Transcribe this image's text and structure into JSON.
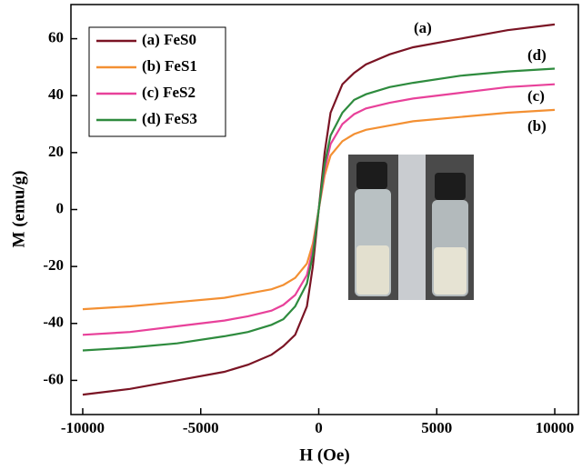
{
  "chart_data": {
    "type": "line",
    "xlabel": "H (Oe)",
    "ylabel": "M (emu/g)",
    "x": [
      -10000,
      -8000,
      -6000,
      -4000,
      -3000,
      -2000,
      -1500,
      -1000,
      -500,
      -250,
      0,
      250,
      500,
      1000,
      1500,
      2000,
      3000,
      4000,
      6000,
      8000,
      10000
    ],
    "series": [
      {
        "name": "(a) FeS0",
        "color": "#7a1424",
        "values": [
          -65,
          -63,
          -60,
          -57,
          -54.5,
          -51,
          -48,
          -44,
          -34,
          -20,
          0,
          20,
          34,
          44,
          48,
          51,
          54.5,
          57,
          60,
          63,
          65
        ]
      },
      {
        "name": "(b) FeS1",
        "color": "#f39033",
        "values": [
          -35,
          -34,
          -32.5,
          -31,
          -29.5,
          -28,
          -26.5,
          -24,
          -19,
          -12,
          0,
          12,
          19,
          24,
          26.5,
          28,
          29.5,
          31,
          32.5,
          34,
          35
        ]
      },
      {
        "name": "(c) FeS2",
        "color": "#e8419a",
        "values": [
          -44,
          -43,
          -41,
          -39,
          -37.5,
          -35.5,
          -33.5,
          -30,
          -23,
          -14,
          0,
          14,
          23,
          30,
          33.5,
          35.5,
          37.5,
          39,
          41,
          43,
          44
        ]
      },
      {
        "name": "(d) FeS3",
        "color": "#2e8b3e",
        "values": [
          -49.5,
          -48.5,
          -47,
          -44.5,
          -43,
          -40.5,
          -38.5,
          -34,
          -26,
          -16,
          0,
          16,
          26,
          34,
          38.5,
          40.5,
          43,
          44.5,
          47,
          48.5,
          49.5
        ]
      }
    ],
    "annotations": [
      "(a)",
      "(d)",
      "(c)",
      "(b)"
    ],
    "xlim": [
      -10500,
      11000
    ],
    "xticks": [
      -10000,
      -5000,
      0,
      5000,
      10000
    ],
    "ylim": [
      -72,
      72
    ],
    "yticks": [
      -60,
      -40,
      -20,
      0,
      20,
      40,
      60
    ],
    "legend": "upper left"
  }
}
